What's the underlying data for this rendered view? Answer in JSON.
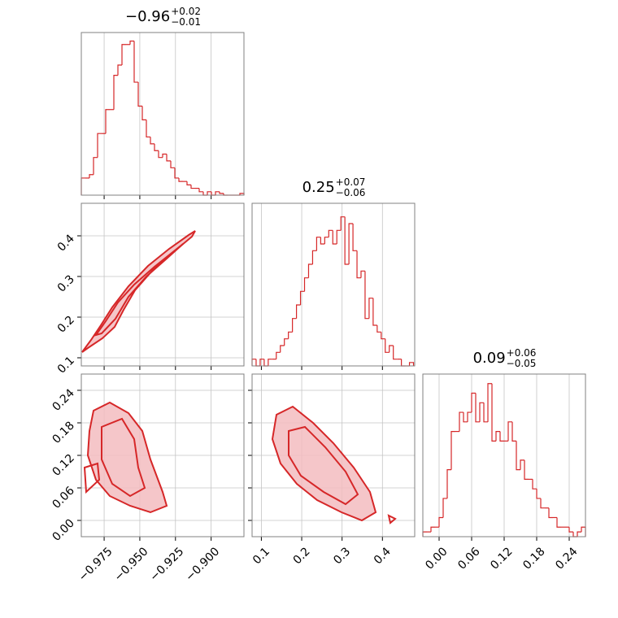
{
  "chart_data": [
    {
      "type": "histogram",
      "color": "#d62728",
      "title": "−0.96",
      "title_upper": "+0.02",
      "title_lower": "−0.01",
      "bins": [
        -0.991,
        -0.98815,
        -0.9853,
        -0.98245,
        -0.9796,
        -0.97675,
        -0.9739,
        -0.97105,
        -0.9682,
        -0.96535,
        -0.9625,
        -0.95965,
        -0.9568,
        -0.95395,
        -0.9511,
        -0.94825,
        -0.9454,
        -0.94255,
        -0.9397,
        -0.93685,
        -0.934,
        -0.93115,
        -0.9283,
        -0.92545,
        -0.9226,
        -0.91975,
        -0.9169,
        -0.91405,
        -0.9112,
        -0.90835,
        -0.9055,
        -0.90265,
        -0.8998,
        -0.89695,
        -0.8941,
        -0.89125,
        -0.8884,
        -0.88555,
        -0.8827,
        -0.87985,
        -0.877
      ],
      "counts": [
        10,
        10,
        12,
        22,
        36,
        36,
        50,
        50,
        70,
        76,
        88,
        88,
        90,
        66,
        52,
        44,
        34,
        30,
        26,
        22,
        24,
        20,
        16,
        10,
        8,
        8,
        6,
        4,
        4,
        2,
        0,
        2,
        0,
        2,
        1,
        0,
        0,
        0,
        0,
        1
      ],
      "xlim": [
        -0.991,
        -0.877
      ],
      "ylim": [
        0,
        95
      ],
      "xticks": [
        -0.975,
        -0.95,
        -0.925,
        -0.9
      ],
      "grid": true
    },
    {
      "type": "contour",
      "color": "#d62728",
      "xlim": [
        -0.991,
        -0.877
      ],
      "ylim": [
        0.08,
        0.48
      ],
      "xticks": [
        -0.975,
        -0.95,
        -0.925,
        -0.9
      ],
      "yticks": [
        0.1,
        0.2,
        0.3,
        0.4
      ],
      "grid": true
    },
    {
      "type": "histogram",
      "color": "#d62728",
      "title": "0.25",
      "title_upper": "+0.07",
      "title_lower": "−0.06",
      "bins": [
        0.077,
        0.087,
        0.097,
        0.107,
        0.117,
        0.127,
        0.137,
        0.147,
        0.157,
        0.167,
        0.177,
        0.187,
        0.197,
        0.207,
        0.217,
        0.227,
        0.237,
        0.247,
        0.257,
        0.267,
        0.277,
        0.287,
        0.297,
        0.307,
        0.317,
        0.327,
        0.337,
        0.347,
        0.357,
        0.367,
        0.377,
        0.387,
        0.397,
        0.407,
        0.417,
        0.427,
        0.437,
        0.447,
        0.457,
        0.467,
        0.477
      ],
      "counts": [
        2,
        0,
        2,
        0,
        2,
        2,
        4,
        6,
        8,
        10,
        14,
        18,
        22,
        26,
        30,
        34,
        38,
        36,
        38,
        40,
        36,
        40,
        44,
        30,
        42,
        34,
        26,
        28,
        14,
        20,
        12,
        10,
        8,
        4,
        6,
        2,
        2,
        0,
        0,
        1
      ],
      "xlim": [
        0.077,
        0.48
      ],
      "ylim": [
        0,
        48
      ],
      "xticks": [
        0.1,
        0.2,
        0.3,
        0.4
      ],
      "grid": true
    },
    {
      "type": "contour",
      "color": "#d62728",
      "xlim": [
        -0.991,
        -0.877
      ],
      "ylim": [
        -0.03,
        0.27
      ],
      "xticks": [
        {
          "value": -0.975,
          "label": "−0.975"
        },
        {
          "value": -0.95,
          "label": "−0.950"
        },
        {
          "value": -0.925,
          "label": "−0.925"
        },
        {
          "value": -0.9,
          "label": "−0.900"
        }
      ],
      "yticks": [
        {
          "value": 0,
          "label": "0.00"
        },
        0.06,
        0.12,
        0.18,
        0.24
      ],
      "grid": true
    },
    {
      "type": "contour",
      "color": "#d62728",
      "xlim": [
        0.077,
        0.48
      ],
      "ylim": [
        -0.03,
        0.27
      ],
      "xticks": [
        0.1,
        0.2,
        0.3,
        0.4
      ],
      "yticks": [
        0,
        0.06,
        0.12,
        0.18,
        0.24
      ],
      "grid": true
    },
    {
      "type": "histogram",
      "color": "#d62728",
      "title": "0.09",
      "title_upper": "+0.06",
      "title_lower": "−0.05",
      "bins": [
        -0.03,
        -0.0225,
        -0.015,
        -0.0075,
        0,
        0.0075,
        0.015,
        0.0225,
        0.03,
        0.0375,
        0.045,
        0.0525,
        0.06,
        0.0675,
        0.075,
        0.0825,
        0.09,
        0.0975,
        0.105,
        0.1125,
        0.12,
        0.1275,
        0.135,
        0.1425,
        0.15,
        0.1575,
        0.165,
        0.1725,
        0.18,
        0.1875,
        0.195,
        0.2025,
        0.21,
        0.2175,
        0.225,
        0.2325,
        0.24,
        0.2475,
        0.255,
        0.2625,
        0.27
      ],
      "counts": [
        1,
        1,
        2,
        2,
        4,
        8,
        14,
        22,
        22,
        26,
        24,
        26,
        30,
        24,
        28,
        24,
        32,
        20,
        22,
        20,
        20,
        24,
        20,
        14,
        16,
        12,
        12,
        10,
        8,
        6,
        6,
        4,
        4,
        2,
        2,
        2,
        1,
        0,
        1,
        2
      ],
      "xlim": [
        -0.03,
        0.27
      ],
      "ylim": [
        0,
        34
      ],
      "xticks": [
        {
          "value": 0,
          "label": "0.00"
        },
        0.06,
        0.12,
        0.18,
        0.24
      ],
      "grid": true
    }
  ]
}
